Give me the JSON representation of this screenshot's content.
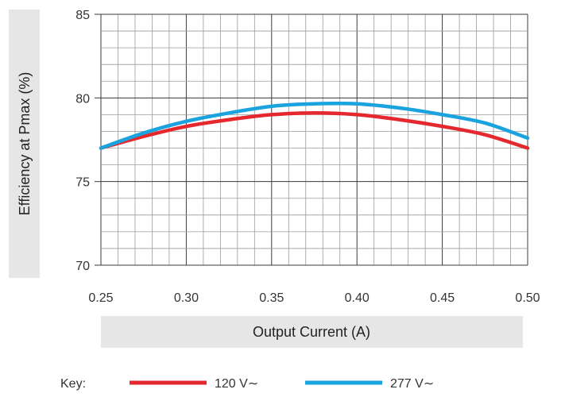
{
  "chart_data": {
    "type": "line",
    "xlabel": "Output Current (A)",
    "ylabel": "Efficiency at Pmax (%)",
    "xlim": [
      0.25,
      0.5
    ],
    "ylim": [
      70,
      85
    ],
    "x_ticks": [
      "0.25",
      "0.30",
      "0.35",
      "0.40",
      "0.45",
      "0.50"
    ],
    "y_ticks": [
      "70",
      "75",
      "80",
      "85"
    ],
    "grid": true,
    "legend_prefix": "Key:",
    "series": [
      {
        "name": "120 V∼",
        "color": "#e5282e",
        "x": [
          0.25,
          0.275,
          0.3,
          0.325,
          0.35,
          0.375,
          0.4,
          0.425,
          0.45,
          0.475,
          0.5
        ],
        "y": [
          77.0,
          77.7,
          78.3,
          78.7,
          79.0,
          79.1,
          79.0,
          78.7,
          78.3,
          77.8,
          77.0
        ]
      },
      {
        "name": "277 V∼",
        "color": "#1aa3de",
        "x": [
          0.25,
          0.275,
          0.3,
          0.325,
          0.35,
          0.375,
          0.4,
          0.425,
          0.45,
          0.475,
          0.5
        ],
        "y": [
          77.0,
          77.9,
          78.6,
          79.1,
          79.5,
          79.65,
          79.65,
          79.4,
          79.0,
          78.5,
          77.6
        ]
      }
    ]
  }
}
